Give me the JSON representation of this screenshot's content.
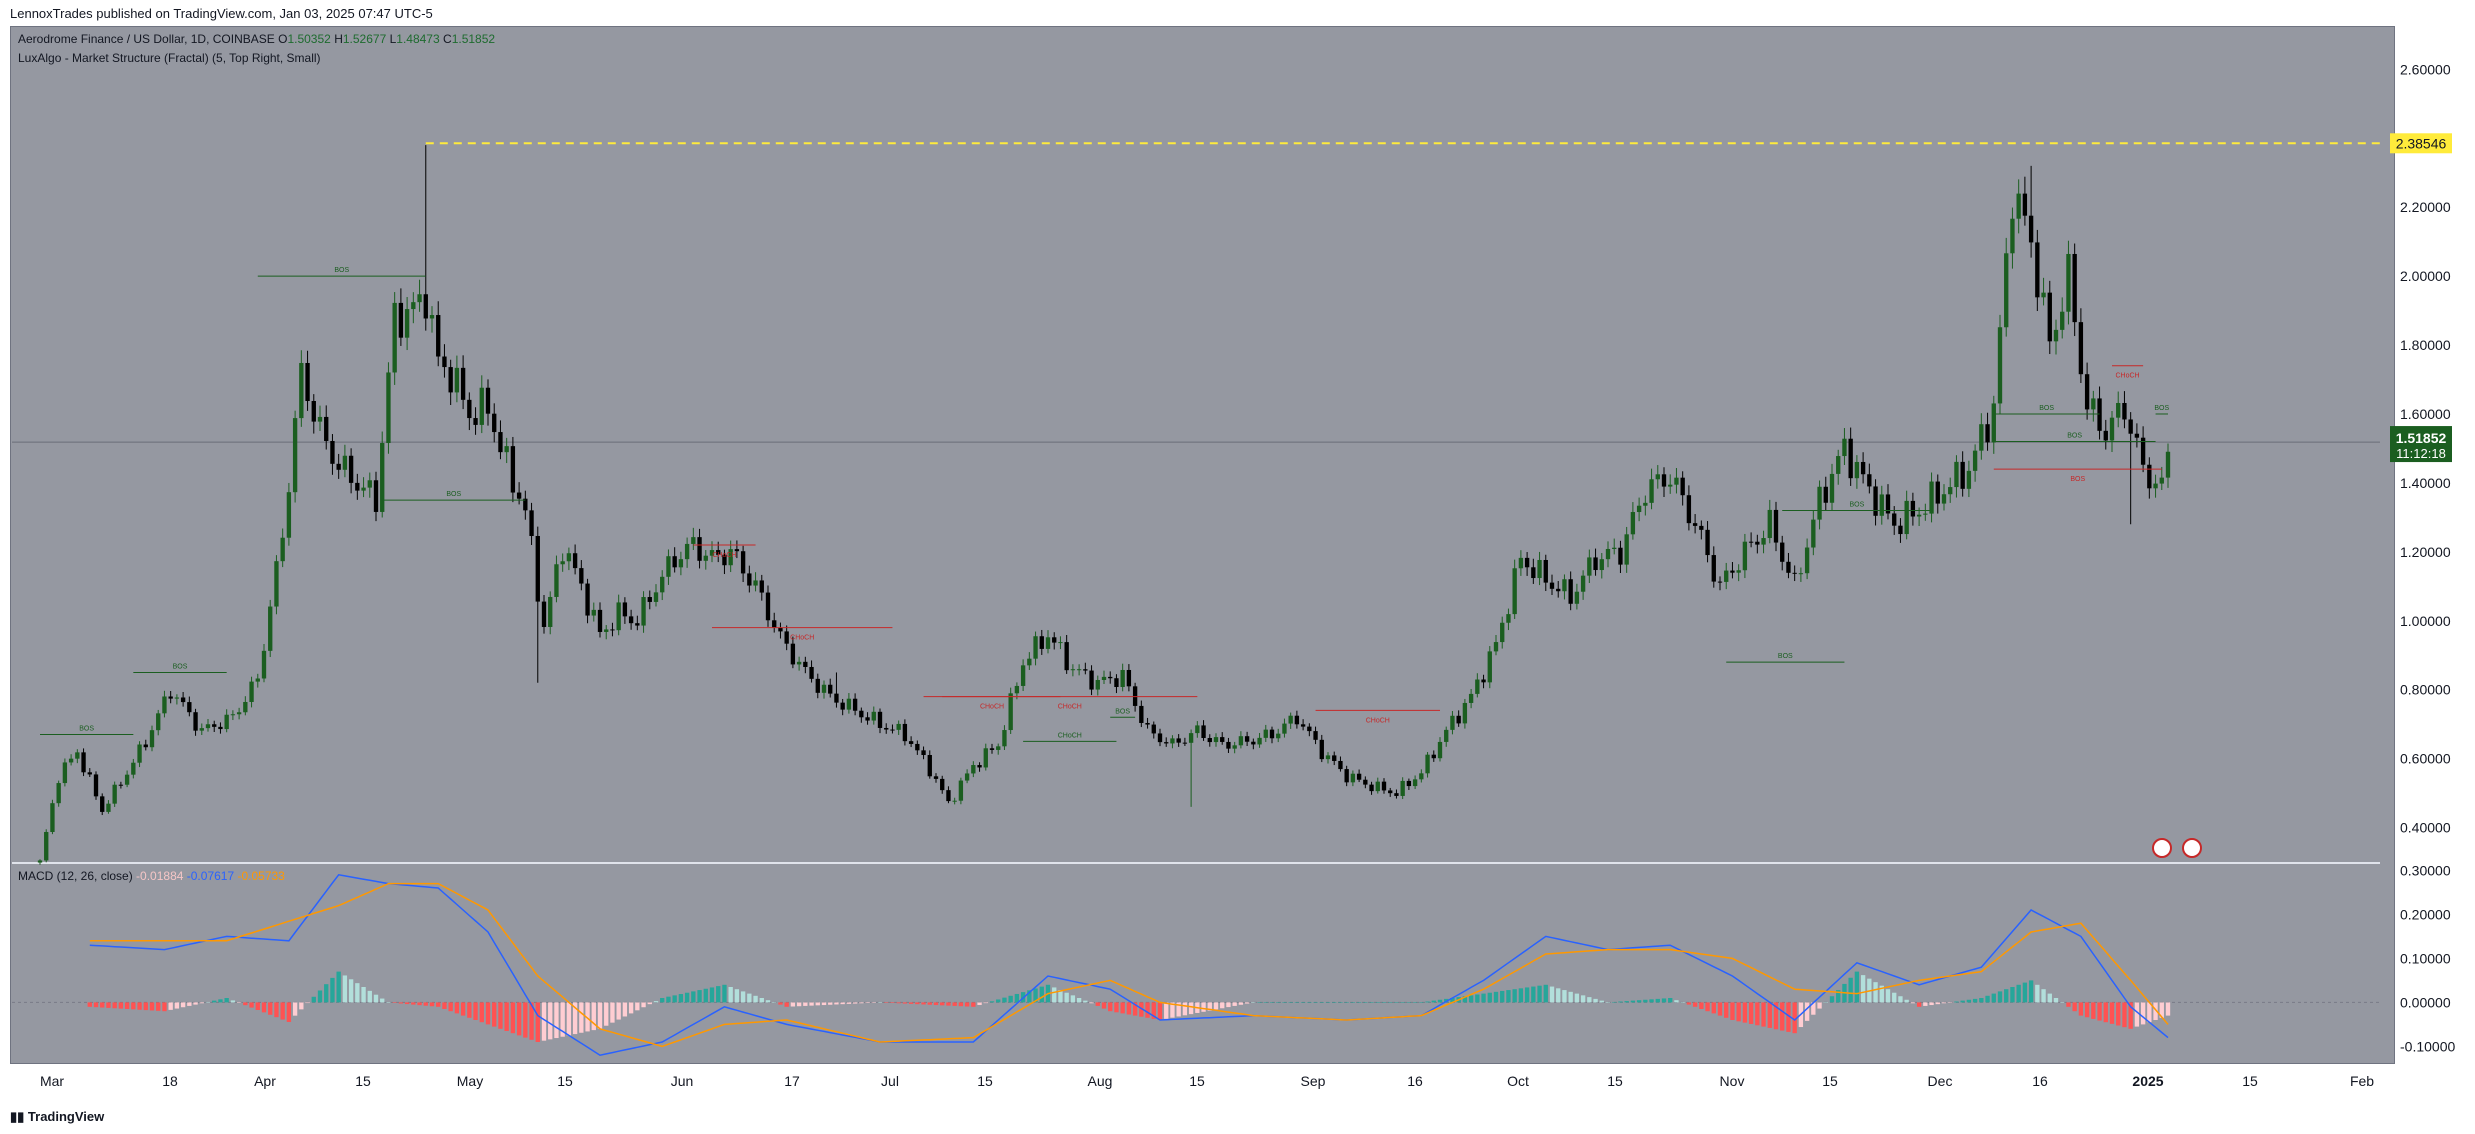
{
  "header": {
    "published": "LennoxTrades published on TradingView.com, Jan 03, 2025 07:47 UTC-5"
  },
  "legend": {
    "symbol": "Aerodrome Finance / US Dollar, 1D, COINBASE",
    "o_label": "O",
    "o_value": "1.50352",
    "h_label": "H",
    "h_value": "1.52677",
    "l_label": "L",
    "l_value": "1.48473",
    "c_label": "C",
    "c_value": "1.51852",
    "indicator": "LuxAlgo - Market Structure (Fractal) (5, Top Right, Small)"
  },
  "macd_legend": {
    "title": "MACD (12, 26, close)",
    "hist": "-0.01884",
    "macd": "-0.07617",
    "signal": "-0.05733"
  },
  "footer": {
    "logo": "TradingView"
  },
  "colors": {
    "background": "#9598a1",
    "bull": "#1b5e20",
    "bear": "#000000",
    "macd_line": "#2962ff",
    "signal_line": "#ff9800",
    "hist_pos_strong": "#26a69a",
    "hist_pos_weak": "#b2dfdb",
    "hist_neg_strong": "#ff5252",
    "hist_neg_weak": "#ffcdd2",
    "resistance": "#ffeb3b",
    "price_tag": "#1b5e20"
  },
  "chart_data": [
    {
      "type": "candlestick",
      "title": "Aerodrome Finance / US Dollar, 1D, COINBASE",
      "x_ticks": [
        "Mar",
        "18",
        "Apr",
        "15",
        "May",
        "15",
        "Jun",
        "17",
        "Jul",
        "15",
        "Aug",
        "15",
        "Sep",
        "16",
        "Oct",
        "15",
        "Nov",
        "15",
        "Dec",
        "16",
        "2025",
        "15",
        "Feb"
      ],
      "y_ticks": [
        "2.60000",
        "2.40000",
        "2.20000",
        "2.00000",
        "1.80000",
        "1.60000",
        "1.40000",
        "1.20000",
        "1.00000",
        "0.80000",
        "0.60000",
        "0.40000"
      ],
      "ylim": [
        0.3,
        2.72
      ],
      "resistance_level": "2.38546",
      "last_price": "1.51852",
      "countdown": "11:12:18",
      "structure_labels": [
        "BOS",
        "BOS",
        "BOS",
        "BOS",
        "CHoCH",
        "CHoCH",
        "CHoCH",
        "CHoCH",
        "CHoCH",
        "BOS",
        "BOS",
        "CHoCH",
        "BOS",
        "BOS",
        "BOS",
        "BOS",
        "CHoCH",
        "BOS"
      ],
      "close_anchors": [
        [
          0,
          0.3
        ],
        [
          3,
          0.55
        ],
        [
          6,
          0.62
        ],
        [
          10,
          0.45
        ],
        [
          14,
          0.56
        ],
        [
          17,
          0.65
        ],
        [
          21,
          0.8
        ],
        [
          26,
          0.68
        ],
        [
          31,
          0.72
        ],
        [
          35,
          0.83
        ],
        [
          39,
          1.25
        ],
        [
          42,
          1.72
        ],
        [
          45,
          1.55
        ],
        [
          48,
          1.45
        ],
        [
          51,
          1.4
        ],
        [
          54,
          1.35
        ],
        [
          57,
          1.88
        ],
        [
          60,
          1.9
        ],
        [
          62,
          1.95
        ],
        [
          64,
          1.75
        ],
        [
          66,
          1.72
        ],
        [
          69,
          1.6
        ],
        [
          72,
          1.62
        ],
        [
          75,
          1.45
        ],
        [
          78,
          1.32
        ],
        [
          81,
          0.98
        ],
        [
          84,
          1.22
        ],
        [
          87,
          1.1
        ],
        [
          90,
          0.96
        ],
        [
          93,
          1.02
        ],
        [
          96,
          1.0
        ],
        [
          99,
          1.1
        ],
        [
          102,
          1.18
        ],
        [
          105,
          1.22
        ],
        [
          108,
          1.18
        ],
        [
          111,
          1.2
        ],
        [
          115,
          1.1
        ],
        [
          119,
          0.95
        ],
        [
          123,
          0.85
        ],
        [
          127,
          0.78
        ],
        [
          131,
          0.74
        ],
        [
          135,
          0.7
        ],
        [
          139,
          0.67
        ],
        [
          143,
          0.57
        ],
        [
          146,
          0.47
        ],
        [
          150,
          0.58
        ],
        [
          154,
          0.64
        ],
        [
          158,
          0.88
        ],
        [
          162,
          0.96
        ],
        [
          166,
          0.86
        ],
        [
          170,
          0.82
        ],
        [
          174,
          0.84
        ],
        [
          178,
          0.68
        ],
        [
          182,
          0.64
        ],
        [
          186,
          0.68
        ],
        [
          190,
          0.64
        ],
        [
          194,
          0.65
        ],
        [
          198,
          0.67
        ],
        [
          202,
          0.72
        ],
        [
          206,
          0.62
        ],
        [
          210,
          0.55
        ],
        [
          214,
          0.52
        ],
        [
          218,
          0.5
        ],
        [
          222,
          0.56
        ],
        [
          226,
          0.68
        ],
        [
          230,
          0.78
        ],
        [
          234,
          0.93
        ],
        [
          238,
          1.18
        ],
        [
          242,
          1.12
        ],
        [
          246,
          1.07
        ],
        [
          250,
          1.18
        ],
        [
          254,
          1.2
        ],
        [
          258,
          1.38
        ],
        [
          262,
          1.42
        ],
        [
          266,
          1.28
        ],
        [
          270,
          1.1
        ],
        [
          274,
          1.2
        ],
        [
          278,
          1.28
        ],
        [
          282,
          1.1
        ],
        [
          286,
          1.35
        ],
        [
          290,
          1.5
        ],
        [
          294,
          1.38
        ],
        [
          298,
          1.28
        ],
        [
          302,
          1.32
        ],
        [
          306,
          1.38
        ],
        [
          310,
          1.44
        ],
        [
          314,
          1.62
        ],
        [
          317,
          2.25
        ],
        [
          320,
          2.1
        ],
        [
          323,
          1.8
        ],
        [
          326,
          2.0
        ],
        [
          329,
          1.62
        ],
        [
          332,
          1.55
        ],
        [
          335,
          1.62
        ],
        [
          338,
          1.44
        ],
        [
          341,
          1.38
        ],
        [
          342,
          1.5
        ]
      ],
      "wick_spikes": [
        [
          62,
          2.38
        ],
        [
          80,
          0.82
        ],
        [
          128,
          0.85
        ],
        [
          185,
          0.46
        ],
        [
          320,
          2.32
        ],
        [
          336,
          1.28
        ]
      ],
      "total_bars": 343
    },
    {
      "type": "line",
      "title": "MACD (12, 26, close)",
      "y_ticks": [
        "0.30000",
        "0.20000",
        "0.10000",
        "0.00000",
        "-0.10000"
      ],
      "ylim": [
        -0.14,
        0.31
      ],
      "series": [
        {
          "name": "MACD",
          "points": [
            [
              8,
              0.13
            ],
            [
              20,
              0.12
            ],
            [
              30,
              0.15
            ],
            [
              40,
              0.14
            ],
            [
              48,
              0.29
            ],
            [
              56,
              0.27
            ],
            [
              64,
              0.26
            ],
            [
              72,
              0.16
            ],
            [
              80,
              -0.03
            ],
            [
              90,
              -0.12
            ],
            [
              100,
              -0.09
            ],
            [
              110,
              -0.01
            ],
            [
              120,
              -0.05
            ],
            [
              135,
              -0.09
            ],
            [
              150,
              -0.09
            ],
            [
              162,
              0.06
            ],
            [
              172,
              0.03
            ],
            [
              180,
              -0.04
            ],
            [
              195,
              -0.03
            ],
            [
              210,
              -0.04
            ],
            [
              222,
              -0.03
            ],
            [
              232,
              0.05
            ],
            [
              242,
              0.15
            ],
            [
              252,
              0.12
            ],
            [
              262,
              0.13
            ],
            [
              272,
              0.06
            ],
            [
              282,
              -0.04
            ],
            [
              292,
              0.09
            ],
            [
              302,
              0.04
            ],
            [
              312,
              0.08
            ],
            [
              320,
              0.21
            ],
            [
              328,
              0.15
            ],
            [
              336,
              -0.01
            ],
            [
              342,
              -0.08
            ]
          ]
        },
        {
          "name": "Signal",
          "points": [
            [
              8,
              0.14
            ],
            [
              30,
              0.14
            ],
            [
              48,
              0.22
            ],
            [
              56,
              0.27
            ],
            [
              64,
              0.27
            ],
            [
              72,
              0.21
            ],
            [
              80,
              0.06
            ],
            [
              90,
              -0.06
            ],
            [
              100,
              -0.1
            ],
            [
              110,
              -0.05
            ],
            [
              120,
              -0.04
            ],
            [
              135,
              -0.09
            ],
            [
              150,
              -0.08
            ],
            [
              162,
              0.02
            ],
            [
              172,
              0.05
            ],
            [
              180,
              0.0
            ],
            [
              195,
              -0.03
            ],
            [
              210,
              -0.04
            ],
            [
              222,
              -0.03
            ],
            [
              232,
              0.03
            ],
            [
              242,
              0.11
            ],
            [
              252,
              0.12
            ],
            [
              262,
              0.12
            ],
            [
              272,
              0.1
            ],
            [
              282,
              0.03
            ],
            [
              292,
              0.02
            ],
            [
              302,
              0.05
            ],
            [
              312,
              0.07
            ],
            [
              320,
              0.16
            ],
            [
              328,
              0.18
            ],
            [
              336,
              0.05
            ],
            [
              342,
              -0.05
            ]
          ]
        }
      ]
    }
  ]
}
